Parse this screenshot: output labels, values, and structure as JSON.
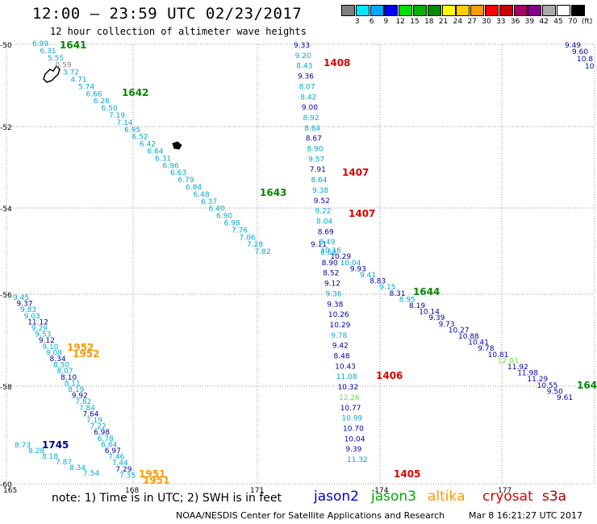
{
  "header": {
    "title": "12:00 – 23:59 UTC 02/23/2017",
    "subtitle": "12 hour collection of altimeter wave heights"
  },
  "legend": {
    "swatches": [
      {
        "color": "#808080",
        "label": "3"
      },
      {
        "color": "#00e5ff",
        "label": "6"
      },
      {
        "color": "#00aaff",
        "label": "9"
      },
      {
        "color": "#0000ff",
        "label": "12"
      },
      {
        "color": "#00dd00",
        "label": "15"
      },
      {
        "color": "#00b000",
        "label": "18"
      },
      {
        "color": "#008800",
        "label": "21"
      },
      {
        "color": "#ffff00",
        "label": "24"
      },
      {
        "color": "#ffcc00",
        "label": "27"
      },
      {
        "color": "#ff9900",
        "label": "30"
      },
      {
        "color": "#ff0000",
        "label": "33"
      },
      {
        "color": "#cc0000",
        "label": "36"
      },
      {
        "color": "#aa0066",
        "label": "39"
      },
      {
        "color": "#880088",
        "label": "42"
      },
      {
        "color": "#aaaaaa",
        "label": "45"
      },
      {
        "color": "#ffffff",
        "label": "70"
      },
      {
        "color": "#000000",
        "label": "(ft)"
      }
    ]
  },
  "map": {
    "lon_ticks": [
      "165",
      "168",
      "171",
      "-174",
      "177"
    ],
    "lat_ticks": [
      "-50",
      "-52",
      "-54",
      "-56",
      "-58",
      "-60"
    ],
    "colors": {
      "jason2": "#0000aa",
      "jason3": "#008800",
      "cryosat": "#dd0000",
      "altika": "#ff9900",
      "low": "#00aacc",
      "lowest": "#808080",
      "highlight": "#66dd44"
    },
    "tracks": [
      {
        "name": "track-nw-se-cyan",
        "color_key": "low",
        "values": [
          "6.99",
          "6.31",
          "5.55",
          "0.59",
          "3.72",
          "4.71",
          "5.74",
          "6.66",
          "6.26",
          "6.50",
          "7.19",
          "7.14",
          "6.95",
          "6.52",
          "6.42",
          "6.64",
          "6.31",
          "6.96",
          "6.63",
          "6.79",
          "6.84",
          "6.48",
          "6.37",
          "6.40",
          "6.90",
          "6.98",
          "7.76",
          "7.06",
          "7.28",
          "7.82"
        ]
      },
      {
        "name": "track-nw-se-blue",
        "color_key": "jason2",
        "values": [
          "9.11",
          "10.16",
          "10.29",
          "10.04",
          "9.93",
          "9.41",
          "8.83",
          "9.15",
          "8.31",
          "8.95",
          "8.19",
          "10.14",
          "9.39",
          "9.73",
          "10.27",
          "10.88",
          "10.41",
          "9.78",
          "10.81",
          "12.03",
          "11.92",
          "11.98",
          "11.29",
          "10.55",
          "9.50",
          "9.61"
        ]
      },
      {
        "name": "track-north-south-mixed",
        "color_key": "jason2",
        "values": [
          "9.33",
          "9.20",
          "8.43",
          "9.36",
          "8.07",
          "8.42",
          "9.00",
          "8.92",
          "8.64",
          "8.67",
          "8.90",
          "9.57",
          "7.91",
          "8.64",
          "9.38",
          "9.52",
          "9.22",
          "8.04",
          "8.69",
          "8.49",
          "8.68",
          "8.90",
          "8.52",
          "9.12",
          "9.36",
          "9.38",
          "10.26",
          "10.29",
          "9.78",
          "9.42",
          "8.48",
          "10.43",
          "11.08",
          "10.32",
          "12.26",
          "10.77",
          "10.99",
          "10.70",
          "10.04",
          "9.39",
          "11.32"
        ]
      },
      {
        "name": "track-west-diag",
        "color_key": "low",
        "values": [
          "9.45",
          "9.37",
          "9.83",
          "9.03",
          "11.12",
          "9.29",
          "9.53",
          "9.12",
          "9.10",
          "9.08",
          "8.34",
          "8.50",
          "8.07",
          "8.10",
          "8.11",
          "8.19",
          "9.92",
          "7.82",
          "7.84",
          "7.64",
          "7.19",
          "7.22",
          "6.98",
          "6.78",
          "6.84",
          "6.97",
          "7.46",
          "7.44",
          "7.29",
          "7.35"
        ]
      },
      {
        "name": "track-sw-corner",
        "color_key": "low",
        "values": [
          "8.73",
          "8.28",
          "8.18",
          "7.87",
          "8.34",
          "7.54"
        ]
      }
    ],
    "time_labels": [
      {
        "text": "1641",
        "color_key": "jason3"
      },
      {
        "text": "1642",
        "color_key": "jason3"
      },
      {
        "text": "1643",
        "color_key": "jason3"
      },
      {
        "text": "1644",
        "color_key": "jason3"
      },
      {
        "text": "164",
        "color_key": "jason3"
      },
      {
        "text": "1408",
        "color_key": "cryosat"
      },
      {
        "text": "1407",
        "color_key": "cryosat"
      },
      {
        "text": "1407",
        "color_key": "cryosat"
      },
      {
        "text": "1406",
        "color_key": "cryosat"
      },
      {
        "text": "1405",
        "color_key": "cryosat"
      },
      {
        "text": "1952",
        "color_key": "altika"
      },
      {
        "text": "1952",
        "color_key": "altika"
      },
      {
        "text": "1951",
        "color_key": "altika"
      },
      {
        "text": "1951",
        "color_key": "altika"
      },
      {
        "text": "1745",
        "color_key": "jason2"
      }
    ],
    "ne_corner_values": [
      "9.49",
      "9.60",
      "10.8",
      "10"
    ]
  },
  "footer": {
    "note": "note:  1) Time is in UTC;  2) SWH is in feet",
    "satellites": [
      {
        "name": "jason2",
        "color": "#0000cc"
      },
      {
        "name": "jason3",
        "color": "#00aa00"
      },
      {
        "name": "altika",
        "color": "#ff9900"
      },
      {
        "name": "cryosat",
        "color": "#dd0000"
      },
      {
        "name": "s3a",
        "color": "#aa0000"
      }
    ],
    "credit": "NOAA/NESDIS Center for Satellite Applications and Research",
    "timestamp": "Mar  8 16:21:27 UTC 2017"
  }
}
